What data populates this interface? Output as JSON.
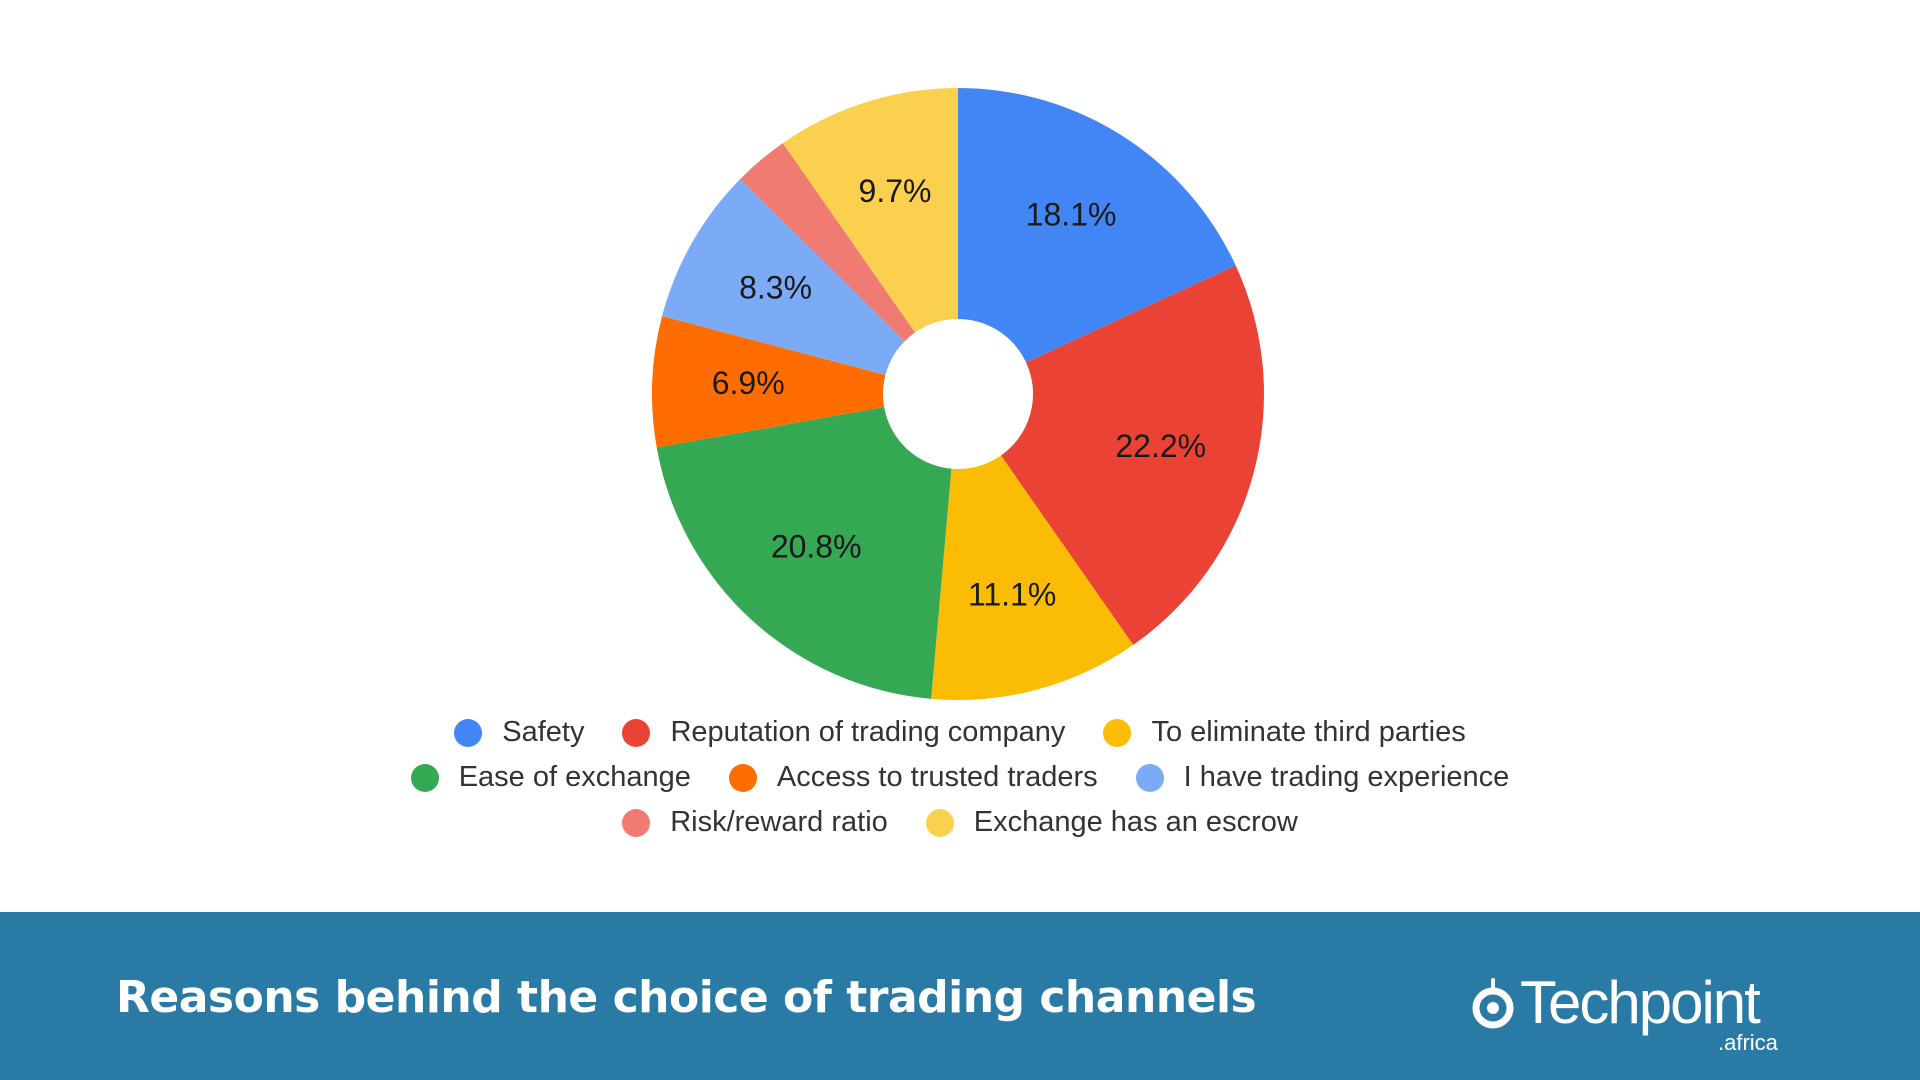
{
  "chart_data": {
    "type": "pie",
    "title": "",
    "donut": true,
    "start_angle_deg": 0,
    "direction": "clockwise",
    "legend_position": "bottom",
    "series": [
      {
        "name": "Safety",
        "value": 18.1,
        "label": "18.1%",
        "color": "#4285f4"
      },
      {
        "name": "Reputation of trading company",
        "value": 22.2,
        "label": "22.2%",
        "color": "#ea4335"
      },
      {
        "name": "To eliminate third parties",
        "value": 11.1,
        "label": "11.1%",
        "color": "#fbbc04"
      },
      {
        "name": "Ease of exchange",
        "value": 20.8,
        "label": "20.8%",
        "color": "#34a853"
      },
      {
        "name": "Access to trusted traders",
        "value": 6.9,
        "label": "6.9%",
        "color": "#ff6d01"
      },
      {
        "name": "I have trading experience",
        "value": 8.3,
        "label": "8.3%",
        "color": "#7baaf7"
      },
      {
        "name": "Risk/reward ratio",
        "value": 2.9,
        "label": "",
        "color": "#f07b72"
      },
      {
        "name": "Exchange has an escrow",
        "value": 9.7,
        "label": "9.7%",
        "color": "#fcd04f"
      }
    ]
  },
  "footer": {
    "title": "Reasons behind the choice of trading channels",
    "brand_name": "Techpoint",
    "brand_sub": ".africa",
    "background": "#2a7aa6"
  }
}
